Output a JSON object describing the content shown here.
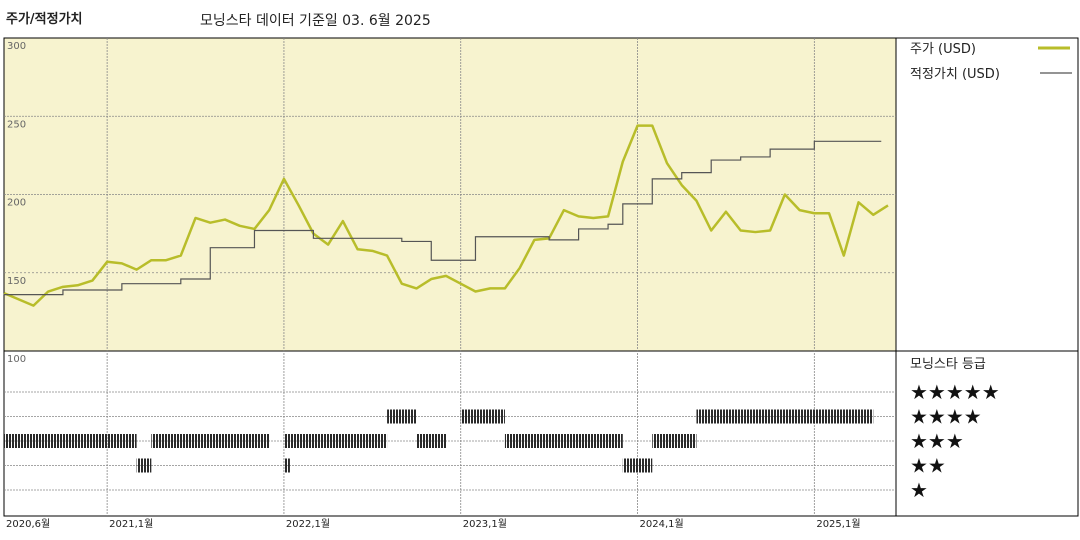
{
  "header": {
    "title": "주가/적정가치",
    "subtitle": "모닝스타 데이터 기준일 03. 6월 2025"
  },
  "colors": {
    "price_line": "#b8bd2a",
    "fair_value_line": "#555555",
    "price_panel_bg": "#f7f3cf",
    "rating_bar": "#2a2a2a",
    "grid": "#888888"
  },
  "chart_data": {
    "type": "line",
    "x_tick_labels": [
      "2020,6월",
      "2021,1월",
      "2022,1월",
      "2023,1월",
      "2024,1월",
      "2025,1월"
    ],
    "x_ticks": [
      "2020-06",
      "2021-01",
      "2022-01",
      "2023-01",
      "2024-01",
      "2025-01"
    ],
    "x_range": [
      "2020-06",
      "2025-06"
    ],
    "y_tick_labels": [
      "300",
      "250",
      "200",
      "150",
      "100"
    ],
    "ylim": [
      100,
      300
    ],
    "grid": true,
    "legend_position": "right",
    "series": [
      {
        "name": "주가 (USD)",
        "style": "line",
        "points": [
          [
            "2020-06",
            137
          ],
          [
            "2020-07",
            133
          ],
          [
            "2020-08",
            129
          ],
          [
            "2020-09",
            138
          ],
          [
            "2020-10",
            141
          ],
          [
            "2020-11",
            142
          ],
          [
            "2020-12",
            145
          ],
          [
            "2021-01",
            157
          ],
          [
            "2021-02",
            156
          ],
          [
            "2021-03",
            152
          ],
          [
            "2021-04",
            158
          ],
          [
            "2021-05",
            158
          ],
          [
            "2021-06",
            161
          ],
          [
            "2021-07",
            185
          ],
          [
            "2021-08",
            182
          ],
          [
            "2021-09",
            184
          ],
          [
            "2021-10",
            180
          ],
          [
            "2021-11",
            178
          ],
          [
            "2021-12",
            190
          ],
          [
            "2022-01",
            210
          ],
          [
            "2022-02",
            193
          ],
          [
            "2022-03",
            175
          ],
          [
            "2022-04",
            168
          ],
          [
            "2022-05",
            183
          ],
          [
            "2022-06",
            165
          ],
          [
            "2022-07",
            164
          ],
          [
            "2022-08",
            161
          ],
          [
            "2022-09",
            143
          ],
          [
            "2022-10",
            140
          ],
          [
            "2022-11",
            146
          ],
          [
            "2022-12",
            148
          ],
          [
            "2023-01",
            143
          ],
          [
            "2023-02",
            138
          ],
          [
            "2023-03",
            140
          ],
          [
            "2023-04",
            140
          ],
          [
            "2023-05",
            153
          ],
          [
            "2023-06",
            171
          ],
          [
            "2023-07",
            172
          ],
          [
            "2023-08",
            190
          ],
          [
            "2023-09",
            186
          ],
          [
            "2023-10",
            185
          ],
          [
            "2023-11",
            186
          ],
          [
            "2023-12",
            221
          ],
          [
            "2024-01",
            244
          ],
          [
            "2024-02",
            244
          ],
          [
            "2024-03",
            220
          ],
          [
            "2024-04",
            206
          ],
          [
            "2024-05",
            196
          ],
          [
            "2024-06",
            177
          ],
          [
            "2024-07",
            189
          ],
          [
            "2024-08",
            177
          ],
          [
            "2024-09",
            176
          ],
          [
            "2024-10",
            177
          ],
          [
            "2024-11",
            200
          ],
          [
            "2024-12",
            190
          ],
          [
            "2025-01",
            188
          ],
          [
            "2025-02",
            188
          ],
          [
            "2025-03",
            161
          ],
          [
            "2025-04",
            195
          ],
          [
            "2025-05",
            187
          ],
          [
            "2025-06",
            193
          ]
        ]
      },
      {
        "name": "적정가치 (USD)",
        "style": "step",
        "points": [
          [
            "2020-06",
            136
          ],
          [
            "2020-10",
            139
          ],
          [
            "2021-02",
            143
          ],
          [
            "2021-06",
            146
          ],
          [
            "2021-08",
            166
          ],
          [
            "2021-11",
            177
          ],
          [
            "2022-03",
            172
          ],
          [
            "2022-09",
            170
          ],
          [
            "2022-11",
            158
          ],
          [
            "2023-02",
            173
          ],
          [
            "2023-07",
            171
          ],
          [
            "2023-09",
            178
          ],
          [
            "2023-11",
            181
          ],
          [
            "2023-12",
            194
          ],
          [
            "2024-02",
            210
          ],
          [
            "2024-04",
            214
          ],
          [
            "2024-06",
            222
          ],
          [
            "2024-08",
            224
          ],
          [
            "2024-10",
            229
          ],
          [
            "2025-01",
            234
          ],
          [
            "2025-05",
            234
          ]
        ]
      }
    ],
    "rating_panel": {
      "title": "모닝스타 등급",
      "levels": [
        "★★★★★",
        "★★★★",
        "★★★",
        "★★",
        "★"
      ],
      "segments": [
        {
          "stars": 3,
          "start": "2020-06",
          "end": "2021-03"
        },
        {
          "stars": 2,
          "start": "2021-03",
          "end": "2021-04"
        },
        {
          "stars": 3,
          "start": "2021-04",
          "end": "2021-12"
        },
        {
          "stars": 2,
          "start": "2022-01",
          "end": "2022-01"
        },
        {
          "stars": 3,
          "start": "2022-01",
          "end": "2022-08"
        },
        {
          "stars": 4,
          "start": "2022-08",
          "end": "2022-10"
        },
        {
          "stars": 3,
          "start": "2022-10",
          "end": "2022-12"
        },
        {
          "stars": 4,
          "start": "2023-01",
          "end": "2023-04"
        },
        {
          "stars": 3,
          "start": "2023-04",
          "end": "2023-12"
        },
        {
          "stars": 2,
          "start": "2023-12",
          "end": "2024-02"
        },
        {
          "stars": 3,
          "start": "2024-02",
          "end": "2024-05"
        },
        {
          "stars": 4,
          "start": "2024-05",
          "end": "2025-05"
        }
      ]
    }
  }
}
